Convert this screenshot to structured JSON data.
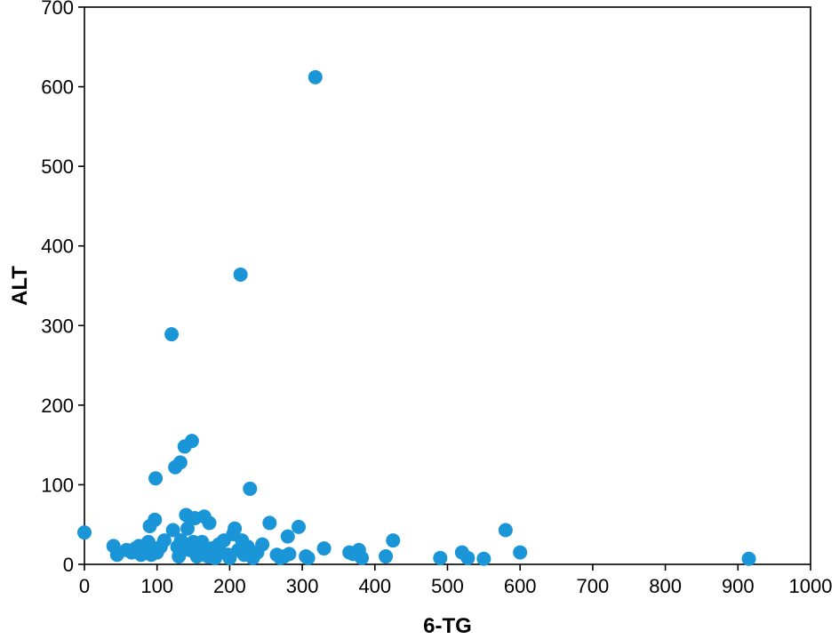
{
  "chart_data": {
    "type": "scatter",
    "title": "",
    "xlabel": "6-TG",
    "ylabel": "ALT",
    "xlim": [
      0,
      1000
    ],
    "ylim": [
      0,
      700
    ],
    "xticks": [
      0,
      100,
      200,
      300,
      400,
      500,
      600,
      700,
      800,
      900,
      1000
    ],
    "yticks": [
      0,
      100,
      200,
      300,
      400,
      500,
      600,
      700
    ],
    "grid": false,
    "legend": "none",
    "marker_color": "#1a96d8",
    "points": [
      [
        0,
        40
      ],
      [
        40,
        23
      ],
      [
        45,
        12
      ],
      [
        58,
        18
      ],
      [
        65,
        15
      ],
      [
        70,
        20
      ],
      [
        75,
        23
      ],
      [
        78,
        12
      ],
      [
        85,
        17
      ],
      [
        88,
        28
      ],
      [
        90,
        48
      ],
      [
        92,
        12
      ],
      [
        95,
        20
      ],
      [
        97,
        56
      ],
      [
        98,
        108
      ],
      [
        100,
        15
      ],
      [
        105,
        22
      ],
      [
        110,
        30
      ],
      [
        120,
        289
      ],
      [
        122,
        43
      ],
      [
        125,
        122
      ],
      [
        128,
        22
      ],
      [
        130,
        10
      ],
      [
        132,
        128
      ],
      [
        133,
        30
      ],
      [
        138,
        148
      ],
      [
        140,
        62
      ],
      [
        142,
        45
      ],
      [
        145,
        18
      ],
      [
        148,
        155
      ],
      [
        150,
        28
      ],
      [
        152,
        58
      ],
      [
        155,
        10
      ],
      [
        158,
        12
      ],
      [
        160,
        22
      ],
      [
        162,
        28
      ],
      [
        165,
        60
      ],
      [
        168,
        18
      ],
      [
        170,
        10
      ],
      [
        172,
        52
      ],
      [
        175,
        20
      ],
      [
        180,
        8
      ],
      [
        185,
        25
      ],
      [
        188,
        15
      ],
      [
        192,
        30
      ],
      [
        198,
        12
      ],
      [
        200,
        8
      ],
      [
        205,
        38
      ],
      [
        207,
        45
      ],
      [
        212,
        18
      ],
      [
        215,
        364
      ],
      [
        217,
        30
      ],
      [
        220,
        12
      ],
      [
        225,
        22
      ],
      [
        228,
        95
      ],
      [
        232,
        8
      ],
      [
        238,
        15
      ],
      [
        245,
        25
      ],
      [
        255,
        52
      ],
      [
        265,
        12
      ],
      [
        270,
        8
      ],
      [
        275,
        10
      ],
      [
        280,
        35
      ],
      [
        282,
        13
      ],
      [
        295,
        47
      ],
      [
        305,
        10
      ],
      [
        308,
        8
      ],
      [
        318,
        612
      ],
      [
        330,
        20
      ],
      [
        365,
        15
      ],
      [
        370,
        13
      ],
      [
        378,
        18
      ],
      [
        382,
        8
      ],
      [
        415,
        10
      ],
      [
        425,
        30
      ],
      [
        490,
        8
      ],
      [
        520,
        15
      ],
      [
        528,
        8
      ],
      [
        550,
        7
      ],
      [
        580,
        43
      ],
      [
        600,
        15
      ],
      [
        915,
        7
      ]
    ]
  }
}
